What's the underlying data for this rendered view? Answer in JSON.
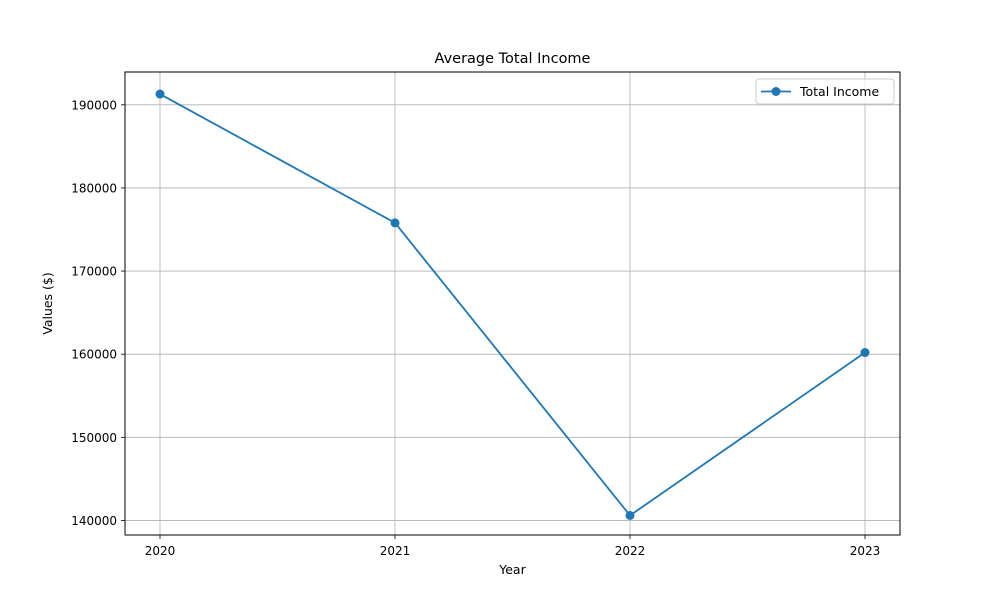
{
  "colors": {
    "series": "#1f77b4",
    "grid": "#b0b0b0",
    "axis": "#000000",
    "background": "#ffffff"
  },
  "chart_data": {
    "type": "line",
    "title": "Average Total Income",
    "xlabel": "Year",
    "ylabel": "Values ($)",
    "categories": [
      "2020",
      "2021",
      "2022",
      "2023"
    ],
    "series": [
      {
        "name": "Total Income",
        "values": [
          191300,
          175800,
          140600,
          160200
        ],
        "marker": "circle"
      }
    ],
    "yticks": [
      140000,
      150000,
      160000,
      170000,
      180000,
      190000
    ],
    "ytick_labels": [
      "140000",
      "150000",
      "160000",
      "170000",
      "180000",
      "190000"
    ],
    "ylim": [
      138250,
      193950
    ],
    "grid": true,
    "legend_position": "upper-right"
  }
}
